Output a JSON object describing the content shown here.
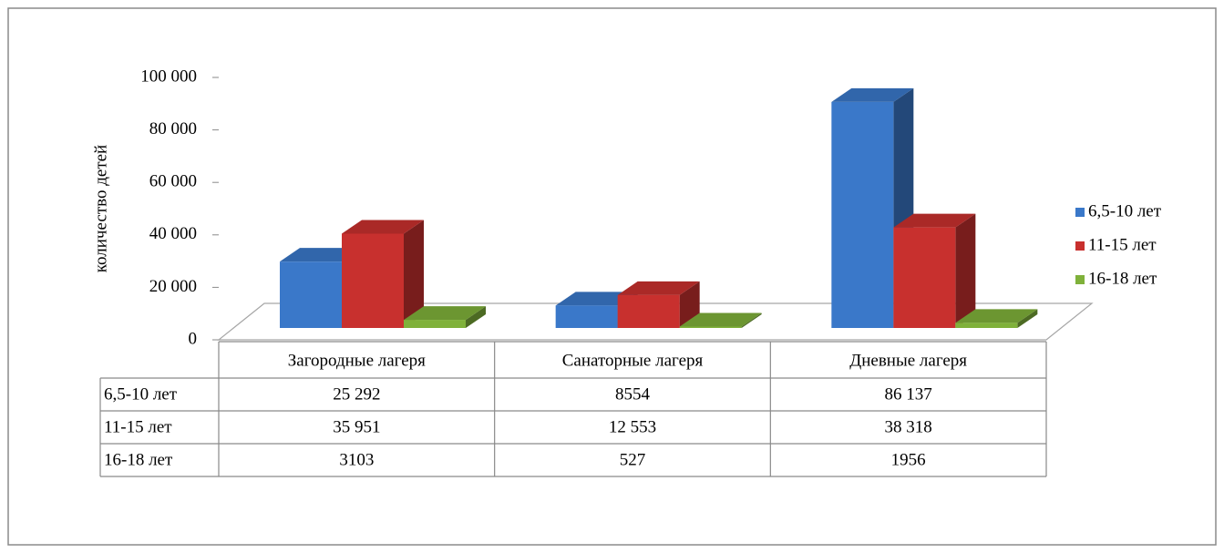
{
  "chart_data": {
    "type": "bar3d",
    "y_label": "количество детей",
    "categories": [
      "Загородные лагеря",
      "Санаторные лагеря",
      "Дневные лагеря"
    ],
    "series": [
      {
        "name": "6,5-10 лет",
        "color": "#3a78c9",
        "values": [
          25292,
          8554,
          86137
        ],
        "value_labels": [
          "25 292",
          "8554",
          "86 137"
        ]
      },
      {
        "name": "11-15 лет",
        "color": "#c8302e",
        "values": [
          35951,
          12553,
          38318
        ],
        "value_labels": [
          "35 951",
          "12 553",
          "38 318"
        ]
      },
      {
        "name": "16-18 лет",
        "color": "#7fb13a",
        "values": [
          3103,
          527,
          1956
        ],
        "value_labels": [
          "3103",
          "527",
          "1956"
        ]
      }
    ],
    "ylim": [
      0,
      100000
    ],
    "yticks": [
      0,
      {
        "value": 20000,
        "label": "20 000"
      },
      {
        "value": 40000,
        "label": "40 000"
      },
      {
        "value": 60000,
        "label": "60 000"
      },
      {
        "value": 80000,
        "label": "80 000"
      },
      {
        "value": 100000,
        "label": "100 000"
      }
    ],
    "grid": false,
    "legend": "right",
    "data_table": true
  }
}
